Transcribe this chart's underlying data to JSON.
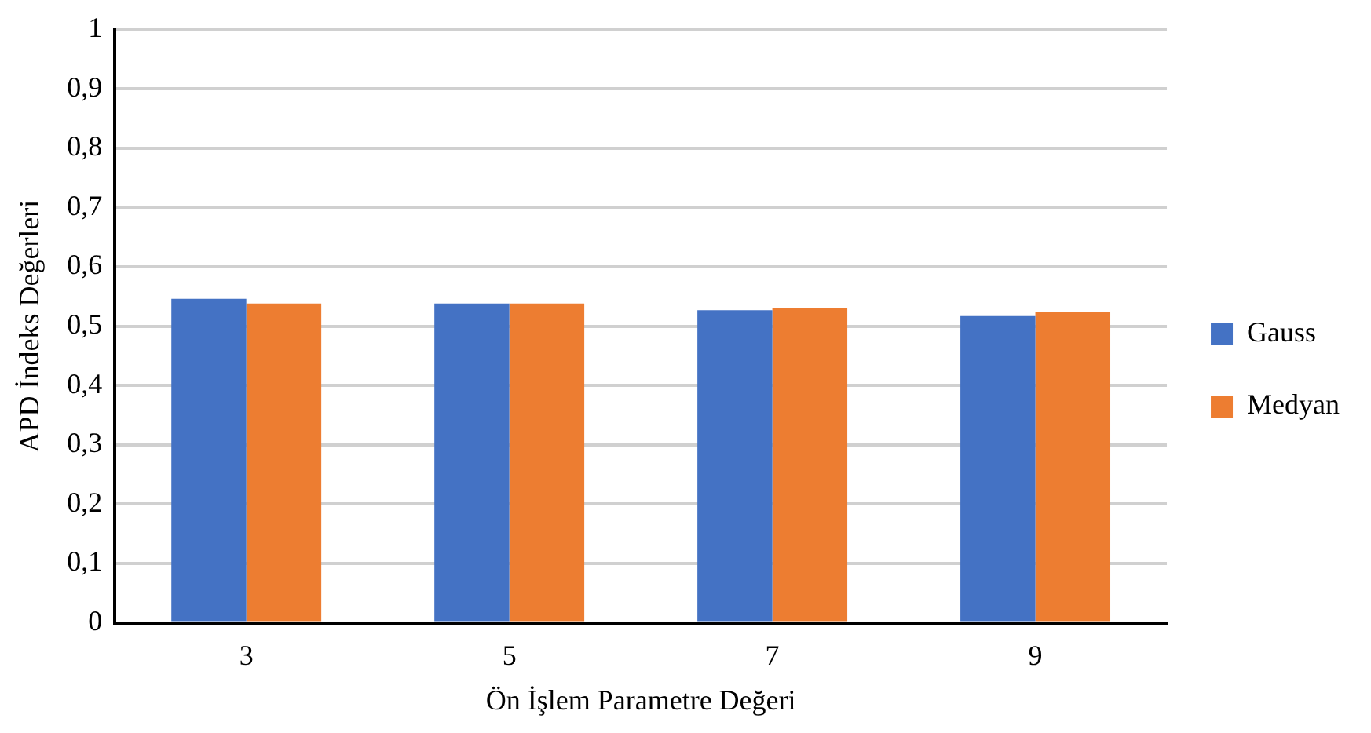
{
  "chart_data": {
    "type": "bar",
    "xlabel": "Ön İşlem Parametre Değeri",
    "ylabel": "APD İndeks Değerleri",
    "categories": [
      "3",
      "5",
      "7",
      "9"
    ],
    "series": [
      {
        "name": "Gauss",
        "color": "#4472c4",
        "values": [
          0.546,
          0.538,
          0.527,
          0.517
        ]
      },
      {
        "name": "Medyan",
        "color": "#ed7d31",
        "values": [
          0.538,
          0.538,
          0.531,
          0.524
        ]
      }
    ],
    "ylim": [
      0,
      1
    ],
    "yticks": [
      {
        "value": 0,
        "label": "0"
      },
      {
        "value": 0.1,
        "label": "0,1"
      },
      {
        "value": 0.2,
        "label": "0,2"
      },
      {
        "value": 0.3,
        "label": "0,3"
      },
      {
        "value": 0.4,
        "label": "0,4"
      },
      {
        "value": 0.5,
        "label": "0,5"
      },
      {
        "value": 0.6,
        "label": "0,6"
      },
      {
        "value": 0.7,
        "label": "0,7"
      },
      {
        "value": 0.8,
        "label": "0,8"
      },
      {
        "value": 0.9,
        "label": "0,9"
      },
      {
        "value": 1,
        "label": "1"
      }
    ],
    "grid": "y",
    "legend": "right"
  }
}
